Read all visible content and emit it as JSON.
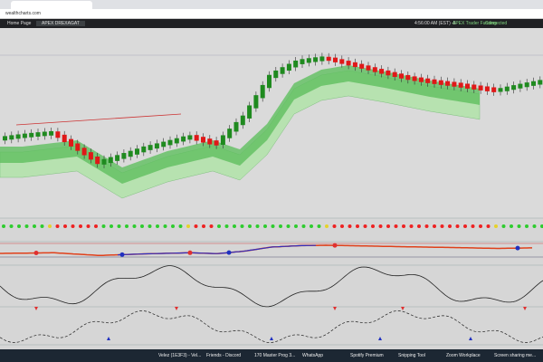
{
  "browser": {
    "address": "wealthcharts.com"
  },
  "toolbar": {
    "home": "Home Page",
    "tab": "APEX DREXAGAT",
    "time": "4:56:00 AM (EST) -5",
    "account": "APEX Trader Funding",
    "status": "Connected"
  },
  "taskbar": {
    "items": [
      "Velez (1E3F3) - Vel...",
      "Friends - Discord",
      "170 Master Prog 3...",
      "WhatsApp",
      "Spotify Premium",
      "Snipping Tool",
      "Zoom Workplace",
      "Screen sharing me..."
    ]
  }
}
